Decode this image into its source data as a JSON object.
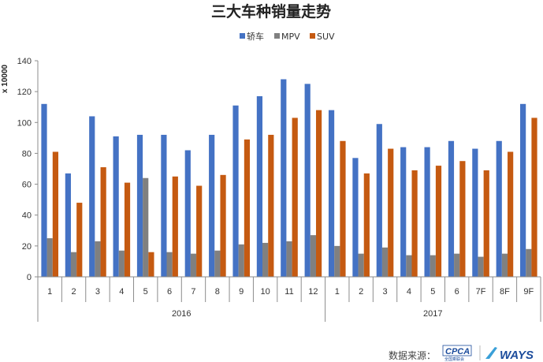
{
  "chart_data": {
    "type": "bar",
    "title": "三大车种销量走势",
    "ylabel": "x 10000",
    "ylim": [
      0,
      140
    ],
    "yticks": [
      0,
      20,
      40,
      60,
      80,
      100,
      120,
      140
    ],
    "grid": false,
    "legend_position": "top-center",
    "categories": [
      "1",
      "2",
      "3",
      "4",
      "5",
      "6",
      "7",
      "8",
      "9",
      "10",
      "11",
      "12",
      "1",
      "2",
      "3",
      "4",
      "5",
      "6",
      "7F",
      "8F",
      "9F"
    ],
    "groups": [
      {
        "label": "2016",
        "count": 12
      },
      {
        "label": "2017",
        "count": 9
      }
    ],
    "series": [
      {
        "name": "轿车",
        "color": "#4472c4",
        "values": [
          112,
          67,
          104,
          91,
          92,
          92,
          82,
          92,
          111,
          117,
          128,
          125,
          108,
          77,
          99,
          84,
          84,
          88,
          83,
          88,
          112
        ]
      },
      {
        "name": "MPV",
        "color": "#808080",
        "values": [
          25,
          16,
          23,
          17,
          64,
          16,
          15,
          17,
          21,
          22,
          23,
          27,
          20,
          15,
          19,
          14,
          14,
          15,
          13,
          15,
          18
        ]
      },
      {
        "name": "SUV",
        "color": "#c55a11",
        "values": [
          81,
          48,
          71,
          61,
          16,
          65,
          59,
          66,
          89,
          92,
          103,
          108,
          88,
          67,
          83,
          69,
          72,
          75,
          69,
          81,
          103
        ]
      }
    ]
  },
  "footer": {
    "source_label": "数据来源：",
    "logo_cpca": "CPCA",
    "logo_cpca_sub": "全国乘联会",
    "logo_ways": "WAYS"
  }
}
